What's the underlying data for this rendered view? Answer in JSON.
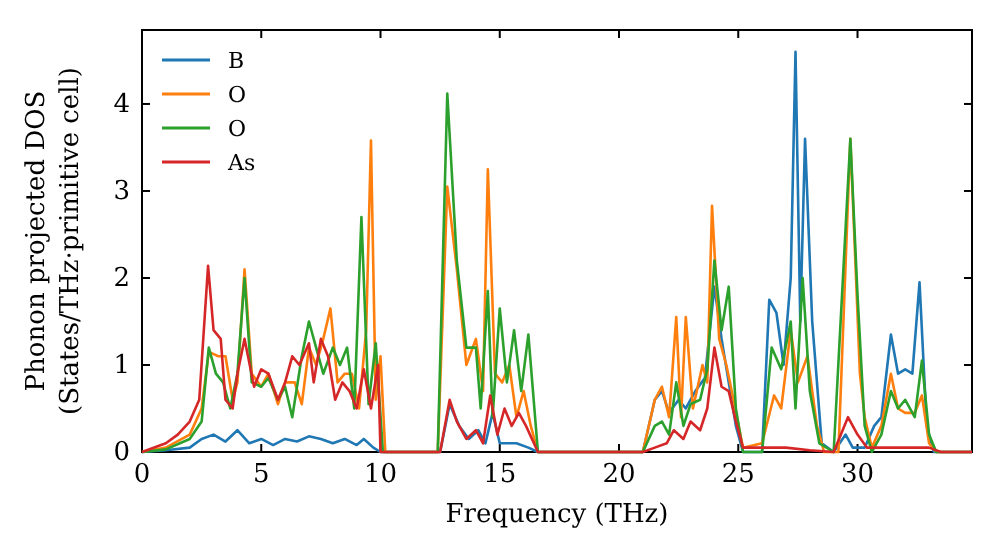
{
  "chart_data": {
    "type": "line",
    "xlabel": "Frequency (THz)",
    "ylabel": "Phonon projected DOS\n(States/THz·primitive cell)",
    "xlim": [
      0,
      34.8
    ],
    "ylim": [
      0,
      4.85
    ],
    "xticks": [
      0,
      5,
      10,
      15,
      20,
      25,
      30
    ],
    "yticks": [
      0,
      1,
      2,
      3,
      4
    ],
    "legend": "top left",
    "grid": false,
    "series": [
      {
        "name": "B",
        "color": "#1f77b4",
        "x": [
          0,
          1,
          2,
          2.5,
          3,
          3.5,
          4,
          4.5,
          5,
          5.5,
          6,
          6.5,
          7,
          7.5,
          8,
          8.5,
          9,
          9.3,
          9.7,
          10,
          12.5,
          12.9,
          13.3,
          13.7,
          14.1,
          14.4,
          14.7,
          15,
          15.3,
          15.7,
          16.2,
          16.6,
          21,
          21.5,
          21.8,
          22.1,
          22.5,
          22.8,
          23.2,
          23.6,
          24,
          24.3,
          24.6,
          24.9,
          25.2,
          26,
          26.3,
          26.6,
          26.9,
          27.2,
          27.4,
          27.6,
          27.8,
          28.1,
          28.5,
          29,
          29.5,
          29.8,
          30.3,
          30.7,
          31,
          31.4,
          31.7,
          32,
          32.3,
          32.6,
          32.9,
          33.2,
          34.8
        ],
        "values": [
          0,
          0.02,
          0.05,
          0.15,
          0.2,
          0.12,
          0.25,
          0.1,
          0.15,
          0.08,
          0.15,
          0.12,
          0.18,
          0.15,
          0.1,
          0.15,
          0.08,
          0.15,
          0.05,
          0,
          0,
          0.55,
          0.3,
          0.15,
          0.25,
          0.1,
          0.45,
          0.1,
          0.1,
          0.1,
          0.05,
          0,
          0,
          0.6,
          0.7,
          0.45,
          0.6,
          0.5,
          0.7,
          0.85,
          1.9,
          1.3,
          0.8,
          0.3,
          0,
          0,
          1.75,
          1.6,
          1,
          2,
          4.6,
          1.5,
          3.6,
          1.5,
          0.1,
          0,
          0.2,
          0.05,
          0.05,
          0.3,
          0.4,
          1.35,
          0.9,
          0.95,
          0.9,
          1.95,
          0.3,
          0,
          0
        ]
      },
      {
        "name": "O",
        "color": "#ff7f0e",
        "x": [
          0,
          1,
          2,
          2.5,
          2.8,
          3.2,
          3.5,
          3.8,
          4,
          4.3,
          4.6,
          5,
          5.3,
          5.7,
          6,
          6.4,
          6.7,
          7,
          7.3,
          7.6,
          7.9,
          8.2,
          8.5,
          8.8,
          9.1,
          9.4,
          9.6,
          9.8,
          10,
          10.2,
          12.4,
          12.8,
          13.2,
          13.6,
          14,
          14.3,
          14.5,
          14.8,
          15.1,
          15.4,
          15.7,
          16,
          16.3,
          16.6,
          21,
          21.5,
          21.8,
          22.1,
          22.4,
          22.6,
          22.8,
          23.1,
          23.5,
          23.7,
          23.9,
          24.2,
          24.5,
          24.8,
          25.2,
          26,
          26.5,
          26.8,
          27.2,
          27.5,
          27.9,
          28.3,
          28.6,
          29.2,
          29.7,
          30.1,
          30.3,
          30.6,
          31,
          31.4,
          31.7,
          32,
          32.4,
          32.7,
          33,
          33.3,
          34.8
        ],
        "values": [
          0,
          0.05,
          0.2,
          0.5,
          1.15,
          1.1,
          1.1,
          0.6,
          0.8,
          2.1,
          0.9,
          0.75,
          0.9,
          0.55,
          0.8,
          0.8,
          0.55,
          1.2,
          1,
          1.3,
          1.65,
          0.8,
          0.9,
          0.9,
          0.5,
          1.4,
          3.58,
          0.6,
          1.1,
          0,
          0,
          3.05,
          2.1,
          1,
          1.3,
          0.7,
          3.25,
          0.9,
          0.8,
          1,
          0.4,
          0.7,
          0.3,
          0,
          0,
          0.6,
          0.75,
          0.4,
          1.55,
          0.4,
          1.55,
          0.5,
          1,
          0.8,
          2.83,
          1.3,
          1,
          0.6,
          0.05,
          0.1,
          0.65,
          0.5,
          1.4,
          0.8,
          1.1,
          0.3,
          0,
          0,
          3.6,
          0.9,
          0.4,
          0.05,
          0.3,
          0.9,
          0.5,
          0.45,
          0.45,
          0.65,
          0.1,
          0,
          0
        ]
      },
      {
        "name": "O",
        "color": "#2ca02c",
        "x": [
          0,
          1,
          2,
          2.5,
          2.8,
          3.1,
          3.4,
          3.7,
          4,
          4.3,
          4.6,
          5,
          5.3,
          5.7,
          6,
          6.3,
          6.7,
          7,
          7.3,
          7.6,
          8,
          8.3,
          8.6,
          8.9,
          9.2,
          9.5,
          9.8,
          10.1,
          12.4,
          12.8,
          13.2,
          13.6,
          14,
          14.2,
          14.5,
          14.7,
          15,
          15.3,
          15.6,
          15.9,
          16.2,
          16.6,
          21,
          21.5,
          21.8,
          22.1,
          22.4,
          22.7,
          23,
          23.4,
          23.7,
          24,
          24.3,
          24.6,
          24.9,
          25.2,
          26,
          26.4,
          26.8,
          27.2,
          27.4,
          27.7,
          28,
          28.4,
          29,
          29.7,
          30,
          30.3,
          30.6,
          31,
          31.4,
          31.7,
          32,
          32.4,
          32.7,
          33,
          33.3,
          34.8
        ],
        "values": [
          0,
          0.03,
          0.15,
          0.35,
          1.2,
          0.9,
          0.8,
          0.5,
          0.9,
          2,
          0.8,
          0.75,
          0.85,
          0.6,
          0.75,
          0.4,
          1.1,
          1.5,
          1.2,
          0.9,
          1.2,
          1,
          1.2,
          0.5,
          2.7,
          0.55,
          1.25,
          0,
          0,
          4.12,
          2.2,
          1.2,
          1.2,
          0.5,
          1.85,
          0.4,
          1.65,
          0.8,
          1.4,
          0.7,
          1.35,
          0,
          0,
          0.3,
          0.35,
          0.2,
          0.8,
          0.3,
          0.55,
          0.6,
          0.95,
          2.2,
          1.4,
          1.9,
          0.5,
          0,
          0,
          1.2,
          0.95,
          1.5,
          0.5,
          2,
          0.7,
          0.1,
          0,
          3.6,
          1.8,
          0.3,
          0,
          0.2,
          0.7,
          0.5,
          0.6,
          0.4,
          1.05,
          0.2,
          0,
          0
        ]
      },
      {
        "name": "As",
        "color": "#d62728",
        "x": [
          0,
          1,
          1.5,
          2,
          2.4,
          2.77,
          3,
          3.3,
          3.5,
          3.8,
          4,
          4.3,
          4.7,
          5,
          5.3,
          5.7,
          6,
          6.3,
          6.6,
          7,
          7.2,
          7.5,
          7.8,
          8.1,
          8.4,
          8.7,
          9,
          9.3,
          9.6,
          9.9,
          10,
          12.5,
          12.9,
          13.2,
          13.6,
          14,
          14.3,
          14.6,
          14.9,
          15.2,
          15.5,
          15.8,
          16.1,
          16.6,
          21,
          21.5,
          22,
          22.3,
          22.7,
          23,
          23.4,
          23.7,
          24,
          24.3,
          24.6,
          24.9,
          25.2,
          26,
          27,
          28,
          29,
          29.6,
          30,
          30.4,
          31,
          33,
          33.5,
          34.8
        ],
        "values": [
          0,
          0.1,
          0.2,
          0.35,
          0.6,
          2.14,
          1.4,
          1.3,
          0.6,
          0.5,
          0.9,
          1.3,
          0.75,
          0.95,
          0.9,
          0.6,
          0.8,
          1.1,
          1,
          1.25,
          0.8,
          1.3,
          1.1,
          0.6,
          0.8,
          0.7,
          0.5,
          0.95,
          0.5,
          1,
          0,
          0,
          0.6,
          0.35,
          0.15,
          0.25,
          0.1,
          0.65,
          0.2,
          0.5,
          0.3,
          0.45,
          0.3,
          0,
          0,
          0.05,
          0.1,
          0.25,
          0.15,
          0.35,
          0.25,
          0.5,
          1.2,
          0.75,
          0.7,
          0.35,
          0.05,
          0.05,
          0.05,
          0.02,
          0,
          0.4,
          0.2,
          0.05,
          0.05,
          0.05,
          0,
          0
        ]
      }
    ]
  }
}
